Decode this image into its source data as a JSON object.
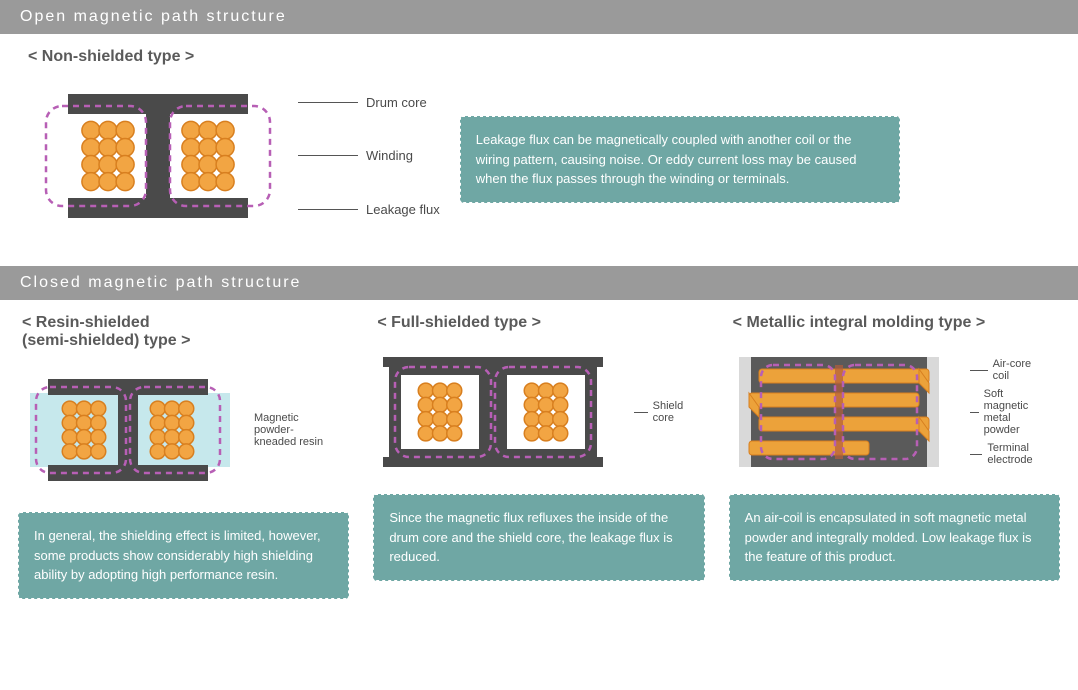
{
  "colors": {
    "header_bg": "#9a9a9a",
    "header_text": "#ffffff",
    "text": "#4a4a4a",
    "callout_bg": "#6fa7a4",
    "callout_text": "#ffffff",
    "core": "#4a4a4a",
    "core_dark": "#3f3f3f",
    "winding_fill": "#f2a543",
    "winding_stroke": "#d87f1f",
    "flux": "#b75fb5",
    "resin": "#c6e8ec",
    "shield": "#4a4a4a",
    "metal_body": "#5a5a5a",
    "metal_bg": "#d9d9d9",
    "coil_bar": "#eca23a"
  },
  "section1": {
    "header": "Open magnetic path structure",
    "subtitle": "< Non-shielded type >",
    "labels": {
      "drum_core": "Drum core",
      "winding": "Winding",
      "leakage": "Leakage flux"
    },
    "callout": "Leakage flux can be magnetically coupled with another coil or the wiring pattern, causing noise. Or eddy current loss may be caused when the flux passes through the winding or terminals."
  },
  "section2": {
    "header": "Closed magnetic path structure",
    "cols": [
      {
        "subtitle": "< Resin-shielded\n  (semi-shielded) type >",
        "side_label": "Magnetic powder-kneaded resin",
        "callout": "In general, the shielding effect is limited, however, some products show considerably high shielding ability by adopting high performance resin."
      },
      {
        "subtitle": "< Full-shielded type >",
        "side_label": "Shield core",
        "callout": "Since the magnetic flux refluxes the inside of the drum core and the shield core, the leakage flux is reduced."
      },
      {
        "subtitle": "< Metallic integral molding type >",
        "side_labels": {
          "air_core": "Air-core coil",
          "powder": "Soft magnetic metal powder",
          "terminal": "Terminal electrode"
        },
        "callout": "An air-coil is encapsulated in soft magnetic metal powder and integrally molded. Low leakage flux is the feature of this product."
      }
    ]
  },
  "diagrams": {
    "winding_grid": {
      "rows": 4,
      "cols": 3,
      "r": 9
    },
    "flux_dash": "6,5",
    "flux_width": 2.5
  }
}
